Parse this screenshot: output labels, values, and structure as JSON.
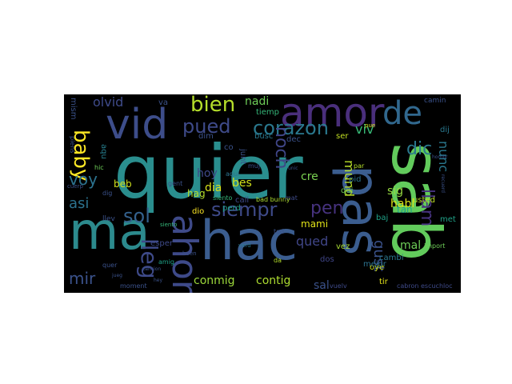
{
  "wordcloud": {
    "background": "#000000",
    "words": [
      {
        "text": "quier",
        "color": "#2a8e8e"
      },
      {
        "text": "hac",
        "color": "#3b5d8f"
      },
      {
        "text": "sab",
        "color": "#62cb5c"
      },
      {
        "text": "ma",
        "color": "#2c8a8d"
      },
      {
        "text": "amor",
        "color": "#4a2f7c"
      },
      {
        "text": "vid",
        "color": "#3d4d8a"
      },
      {
        "text": "pas",
        "color": "#3b5d8f"
      },
      {
        "text": "pued",
        "color": "#3e4a89"
      },
      {
        "text": "corazon",
        "color": "#2a788e"
      },
      {
        "text": "de",
        "color": "#31688e"
      },
      {
        "text": "ahor",
        "color": "#3e4a89"
      },
      {
        "text": "siempr",
        "color": "#3e4a89"
      },
      {
        "text": "baby",
        "color": "#fde725"
      },
      {
        "text": "bien",
        "color": "#b5de2b"
      },
      {
        "text": "mir",
        "color": "#3b528b"
      },
      {
        "text": "lleg",
        "color": "#3e4a89"
      },
      {
        "text": "llam",
        "color": "#46327e"
      },
      {
        "text": "dic",
        "color": "#2a788e"
      },
      {
        "text": "nunc",
        "color": "#2a788e"
      },
      {
        "text": "viv",
        "color": "#38b977"
      },
      {
        "text": "noch",
        "color": "#404688"
      },
      {
        "text": "voy",
        "color": "#2c728e"
      },
      {
        "text": "asi",
        "color": "#2c728e"
      },
      {
        "text": "sol",
        "color": "#34618d"
      },
      {
        "text": "pen",
        "color": "#46327e"
      },
      {
        "text": "qued",
        "color": "#404688"
      },
      {
        "text": "conmig",
        "color": "#9dd93b"
      },
      {
        "text": "contig",
        "color": "#addc30"
      },
      {
        "text": "mund",
        "color": "#b8de29"
      },
      {
        "text": "gust",
        "color": "#3b528b"
      },
      {
        "text": "hoy",
        "color": "#3e4989"
      },
      {
        "text": "olvid",
        "color": "#3e4a89"
      },
      {
        "text": "nadi",
        "color": "#6ece58"
      },
      {
        "text": "dia",
        "color": "#d8e219"
      },
      {
        "text": "bes",
        "color": "#d2e21b"
      },
      {
        "text": "cre",
        "color": "#7ad151"
      },
      {
        "text": "sig",
        "color": "#95d840"
      },
      {
        "text": "habl",
        "color": "#d8e219"
      },
      {
        "text": "mal",
        "color": "#6ece58"
      },
      {
        "text": "mami",
        "color": "#e2e418"
      },
      {
        "text": "sal",
        "color": "#3b528b"
      },
      {
        "text": "usted",
        "color": "#bddf26"
      },
      {
        "text": "tan",
        "color": "#1fa187"
      },
      {
        "text": "mism",
        "color": "#3b528b"
      },
      {
        "text": "aqu",
        "color": "#277f8e"
      },
      {
        "text": "beb",
        "color": "#d0e11c"
      },
      {
        "text": "hag",
        "color": "#b5de2b"
      },
      {
        "text": "tiemp",
        "color": "#35b779"
      },
      {
        "text": "busc",
        "color": "#2a788e"
      },
      {
        "text": "dim",
        "color": "#3b528b"
      },
      {
        "text": "dec",
        "color": "#3b528b"
      },
      {
        "text": "ser",
        "color": "#c2df23"
      },
      {
        "text": "cambi",
        "color": "#2a788e"
      },
      {
        "text": "oye",
        "color": "#d2e21b"
      },
      {
        "text": "tir",
        "color": "#e5e419"
      },
      {
        "text": "mejor",
        "color": "#2c728e"
      },
      {
        "text": "dos",
        "color": "#404688"
      },
      {
        "text": "vez",
        "color": "#a8db34"
      },
      {
        "text": "met",
        "color": "#1fa187"
      },
      {
        "text": "import",
        "color": "#6ece58"
      },
      {
        "text": "esper",
        "color": "#3e4a89"
      },
      {
        "text": "moment",
        "color": "#3b528b"
      },
      {
        "text": "siento",
        "color": "#35b779"
      },
      {
        "text": "llev",
        "color": "#3b528b"
      },
      {
        "text": "dio",
        "color": "#fde725"
      },
      {
        "text": "cabron escuchloc",
        "color": "#3e4a89"
      },
      {
        "text": "vuelv",
        "color": "#3e4a89"
      },
      {
        "text": "pid",
        "color": "#2c728e"
      },
      {
        "text": "qui",
        "color": "#6ece58"
      },
      {
        "text": "par",
        "color": "#b5de2b"
      },
      {
        "text": "tod",
        "color": "#3b528b"
      },
      {
        "text": "junt",
        "color": "#3b528b"
      },
      {
        "text": "call",
        "color": "#3e4a89"
      },
      {
        "text": "perd",
        "color": "#1fa187"
      },
      {
        "text": "bad bunny",
        "color": "#addc30"
      },
      {
        "text": "mat",
        "color": "#3e4a89"
      },
      {
        "text": "gent",
        "color": "#3b528b"
      },
      {
        "text": "piens",
        "color": "#3b528b"
      },
      {
        "text": "hic",
        "color": "#6ece58"
      },
      {
        "text": "dig",
        "color": "#3b528b"
      },
      {
        "text": "amig",
        "color": "#1fa187"
      },
      {
        "text": "quer",
        "color": "#3b528b"
      },
      {
        "text": "co",
        "color": "#3b528b"
      },
      {
        "text": "va",
        "color": "#3b528b"
      },
      {
        "text": "camin",
        "color": "#3b528b"
      },
      {
        "text": "cuerp",
        "color": "#3b528b"
      },
      {
        "text": "siento",
        "color": "#35b779"
      },
      {
        "text": "buen",
        "color": "#3b528b"
      },
      {
        "text": "verd",
        "color": "#2a788e"
      },
      {
        "text": "da",
        "color": "#b5de2b"
      },
      {
        "text": "recuerd",
        "color": "#3b528b"
      },
      {
        "text": "pue",
        "color": "#d2e21b"
      },
      {
        "text": "unic",
        "color": "#3b528b"
      },
      {
        "text": "muj",
        "color": "#3b528b"
      },
      {
        "text": "baj",
        "color": "#1fa187"
      },
      {
        "text": "cancion",
        "color": "#3b528b"
      },
      {
        "text": "hey",
        "color": "#3b528b"
      },
      {
        "text": "jueg",
        "color": "#3b528b"
      },
      {
        "text": "hombr",
        "color": "#3b528b"
      },
      {
        "text": "aqui",
        "color": "#2c728e"
      },
      {
        "text": "dij",
        "color": "#2a788e"
      }
    ]
  }
}
